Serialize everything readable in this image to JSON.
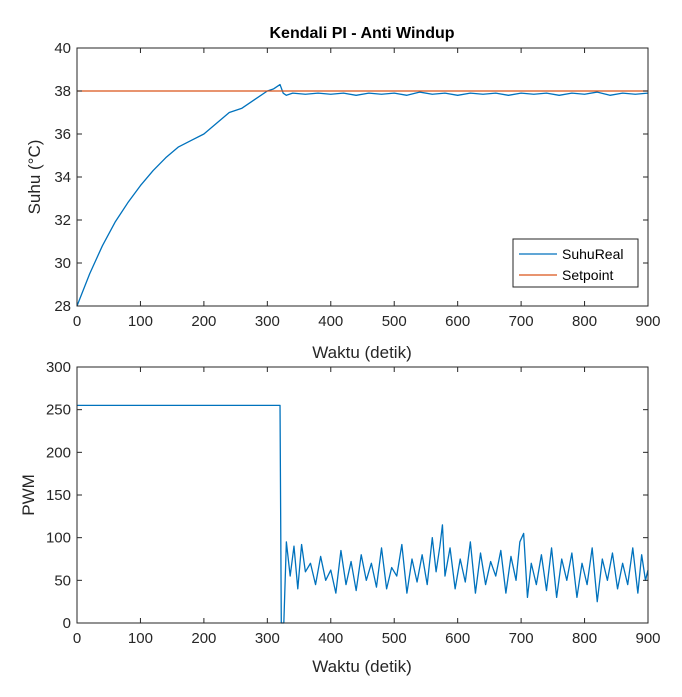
{
  "chart_data": [
    {
      "type": "line",
      "title": "Kendali PI - Anti Windup",
      "xlabel": "Waktu (detik)",
      "ylabel": "Suhu (°C)",
      "xlim": [
        0,
        900
      ],
      "ylim": [
        28,
        40
      ],
      "xticks": [
        0,
        100,
        200,
        300,
        400,
        500,
        600,
        700,
        800,
        900
      ],
      "yticks": [
        28,
        30,
        32,
        34,
        36,
        38,
        40
      ],
      "grid": false,
      "legend_position": "bottom-right",
      "series": [
        {
          "name": "SuhuReal",
          "color": "#0072BD",
          "x": [
            0,
            20,
            40,
            60,
            80,
            100,
            120,
            140,
            160,
            180,
            200,
            220,
            240,
            260,
            280,
            300,
            310,
            320,
            325,
            330,
            340,
            360,
            380,
            400,
            420,
            440,
            460,
            480,
            500,
            520,
            540,
            560,
            580,
            600,
            620,
            640,
            660,
            680,
            700,
            720,
            740,
            760,
            780,
            800,
            820,
            840,
            860,
            880,
            900
          ],
          "y": [
            28.0,
            29.5,
            30.8,
            31.9,
            32.8,
            33.6,
            34.3,
            34.9,
            35.4,
            35.7,
            36.0,
            36.5,
            37.0,
            37.2,
            37.6,
            38.0,
            38.1,
            38.3,
            37.9,
            37.8,
            37.9,
            37.85,
            37.9,
            37.85,
            37.9,
            37.8,
            37.9,
            37.85,
            37.9,
            37.8,
            37.95,
            37.85,
            37.9,
            37.8,
            37.9,
            37.85,
            37.9,
            37.8,
            37.9,
            37.85,
            37.9,
            37.8,
            37.9,
            37.85,
            37.95,
            37.8,
            37.9,
            37.85,
            37.9
          ]
        },
        {
          "name": "Setpoint",
          "color": "#D95319",
          "x": [
            0,
            900
          ],
          "y": [
            38,
            38
          ]
        }
      ]
    },
    {
      "type": "line",
      "title": "",
      "xlabel": "Waktu (detik)",
      "ylabel": "PWM",
      "xlim": [
        0,
        900
      ],
      "ylim": [
        0,
        300
      ],
      "xticks": [
        0,
        100,
        200,
        300,
        400,
        500,
        600,
        700,
        800,
        900
      ],
      "yticks": [
        0,
        50,
        100,
        150,
        200,
        250,
        300
      ],
      "grid": false,
      "series": [
        {
          "name": "",
          "color": "#0072BD",
          "x": [
            0,
            320,
            322,
            324,
            326,
            330,
            336,
            342,
            348,
            354,
            360,
            368,
            376,
            384,
            392,
            400,
            408,
            416,
            424,
            432,
            440,
            448,
            456,
            464,
            472,
            480,
            488,
            496,
            504,
            512,
            520,
            528,
            536,
            544,
            552,
            560,
            566,
            572,
            576,
            580,
            588,
            596,
            604,
            612,
            620,
            628,
            636,
            644,
            652,
            660,
            668,
            676,
            684,
            692,
            698,
            704,
            710,
            716,
            724,
            732,
            740,
            748,
            756,
            764,
            772,
            780,
            788,
            796,
            804,
            812,
            820,
            828,
            836,
            844,
            852,
            860,
            868,
            876,
            884,
            890,
            896,
            900
          ],
          "y": [
            255,
            255,
            0,
            0,
            0,
            95,
            55,
            90,
            40,
            92,
            60,
            70,
            45,
            78,
            50,
            62,
            35,
            85,
            45,
            72,
            38,
            80,
            50,
            70,
            42,
            88,
            40,
            65,
            55,
            92,
            35,
            75,
            48,
            80,
            45,
            100,
            60,
            90,
            115,
            55,
            88,
            40,
            75,
            48,
            95,
            35,
            82,
            45,
            72,
            55,
            85,
            35,
            78,
            50,
            95,
            105,
            30,
            70,
            45,
            80,
            38,
            88,
            30,
            75,
            50,
            82,
            30,
            70,
            45,
            88,
            25,
            75,
            50,
            82,
            40,
            70,
            45,
            88,
            35,
            80,
            50,
            62
          ]
        }
      ]
    }
  ]
}
